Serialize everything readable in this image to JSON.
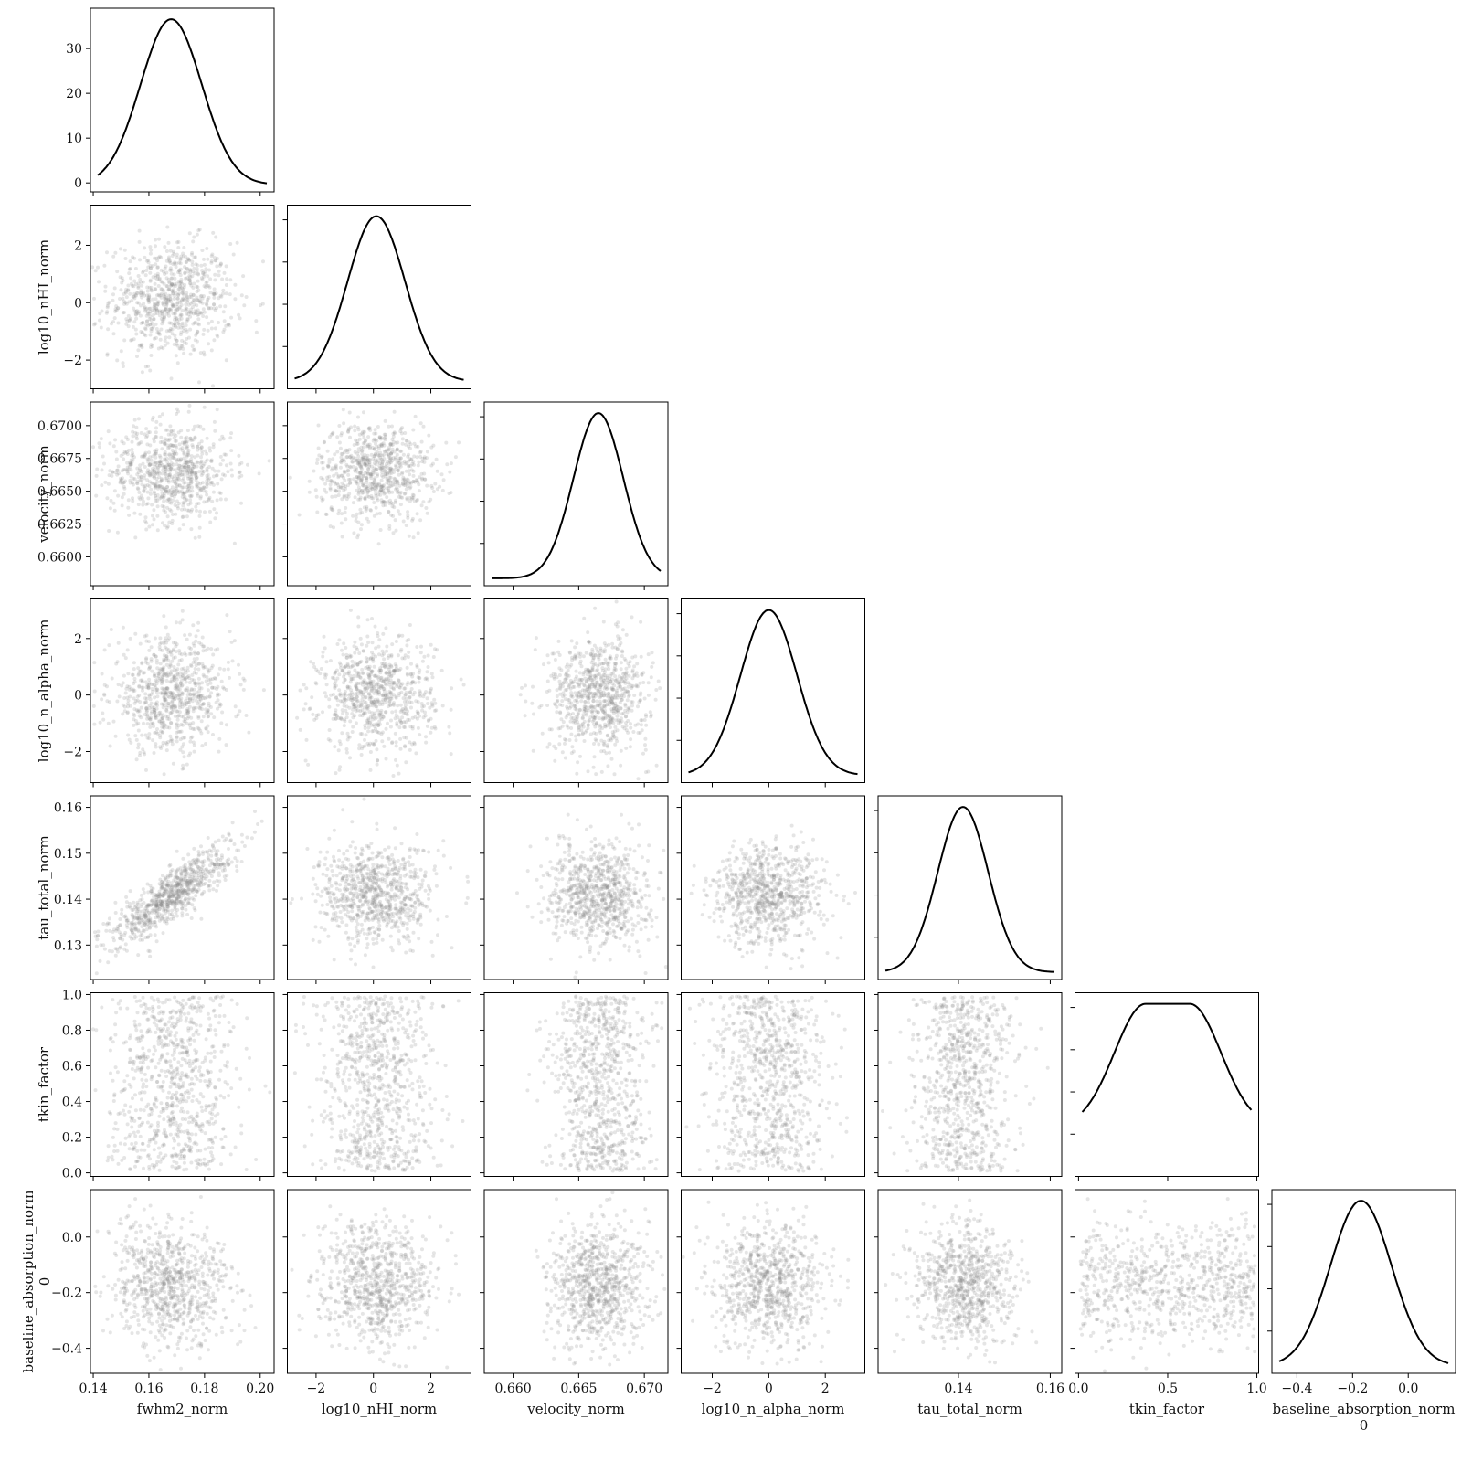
{
  "chart_data": {
    "type": "corner",
    "variables": [
      {
        "name": "fwhm2_norm",
        "ticks": [
          0.14,
          0.16,
          0.18,
          0.2
        ],
        "tick_labels": [
          "0.14",
          "0.16",
          "0.18",
          "0.20"
        ],
        "mean": 0.168,
        "sd": 0.011,
        "range": [
          0.139,
          0.205
        ]
      },
      {
        "name": "log10_nHI_norm",
        "ticks": [
          -2,
          0,
          2
        ],
        "tick_labels": [
          "−2",
          "0",
          "2"
        ],
        "mean": 0.1,
        "sd": 1.0,
        "range": [
          -3.0,
          3.4
        ]
      },
      {
        "name": "velocity_norm",
        "ticks": [
          0.66,
          0.665,
          0.67
        ],
        "tick_labels": [
          "0.660",
          "0.665",
          "0.670"
        ],
        "mean": 0.6665,
        "sd": 0.0019,
        "range": [
          0.6578,
          0.6718
        ]
      },
      {
        "name": "log10_n_alpha_norm",
        "ticks": [
          -2,
          0,
          2
        ],
        "tick_labels": [
          "−2",
          "0",
          "2"
        ],
        "mean": 0.0,
        "sd": 1.0,
        "range": [
          -3.1,
          3.4
        ]
      },
      {
        "name": "tau_total_norm",
        "ticks": [
          0.14,
          0.16
        ],
        "tick_labels": [
          "0.14",
          "0.16"
        ],
        "mean": 0.141,
        "sd": 0.0055,
        "range": [
          0.1225,
          0.1625
        ]
      },
      {
        "name": "tkin_factor",
        "ticks": [
          0.0,
          0.5,
          1.0
        ],
        "tick_labels": [
          "0.0",
          "0.5",
          "1.0"
        ],
        "mean": 0.5,
        "sd": 0.27,
        "range": [
          -0.02,
          1.01
        ]
      },
      {
        "name": "baseline_absorption_norm\n0",
        "ticks": [
          -0.4,
          -0.2,
          0.0
        ],
        "tick_labels": [
          "−0.4",
          "−0.2",
          "0.0"
        ],
        "mean": -0.17,
        "sd": 0.11,
        "range": [
          -0.49,
          0.17
        ]
      }
    ],
    "diag_ticks": [
      {
        "ticks": [
          0,
          10,
          20,
          30
        ],
        "tick_labels": [
          "0",
          "10",
          "20",
          "30"
        ],
        "ylim": [
          -2,
          39
        ]
      },
      {},
      {},
      {},
      {},
      {},
      {}
    ],
    "y_tick_labels": {
      "1": {
        "ticks": [
          -2,
          0,
          2
        ],
        "tick_labels": [
          "−2",
          "0",
          "2"
        ]
      },
      "2": {
        "ticks": [
          0.66,
          0.6625,
          0.665,
          0.6675,
          0.67
        ],
        "tick_labels": [
          "0.6600",
          "0.6625",
          "0.6650",
          "0.6675",
          "0.6700"
        ]
      },
      "3": {
        "ticks": [
          -2,
          0,
          2
        ],
        "tick_labels": [
          "−2",
          "0",
          "2"
        ]
      },
      "4": {
        "ticks": [
          0.13,
          0.14,
          0.15,
          0.16
        ],
        "tick_labels": [
          "0.13",
          "0.14",
          "0.15",
          "0.16"
        ]
      },
      "5": {
        "ticks": [
          0.0,
          0.2,
          0.4,
          0.6,
          0.8,
          1.0
        ],
        "tick_labels": [
          "0.0",
          "0.2",
          "0.4",
          "0.6",
          "0.8",
          "1.0"
        ]
      },
      "6": {
        "ticks": [
          -0.4,
          -0.2,
          0.0
        ],
        "tick_labels": [
          "−0.4",
          "−0.2",
          "0.0"
        ]
      }
    },
    "correlations": [
      {
        "i": 4,
        "j": 0,
        "r": 0.85
      }
    ],
    "samples_per_panel": 800,
    "point_color": "#888888",
    "line_color": "#000000"
  }
}
